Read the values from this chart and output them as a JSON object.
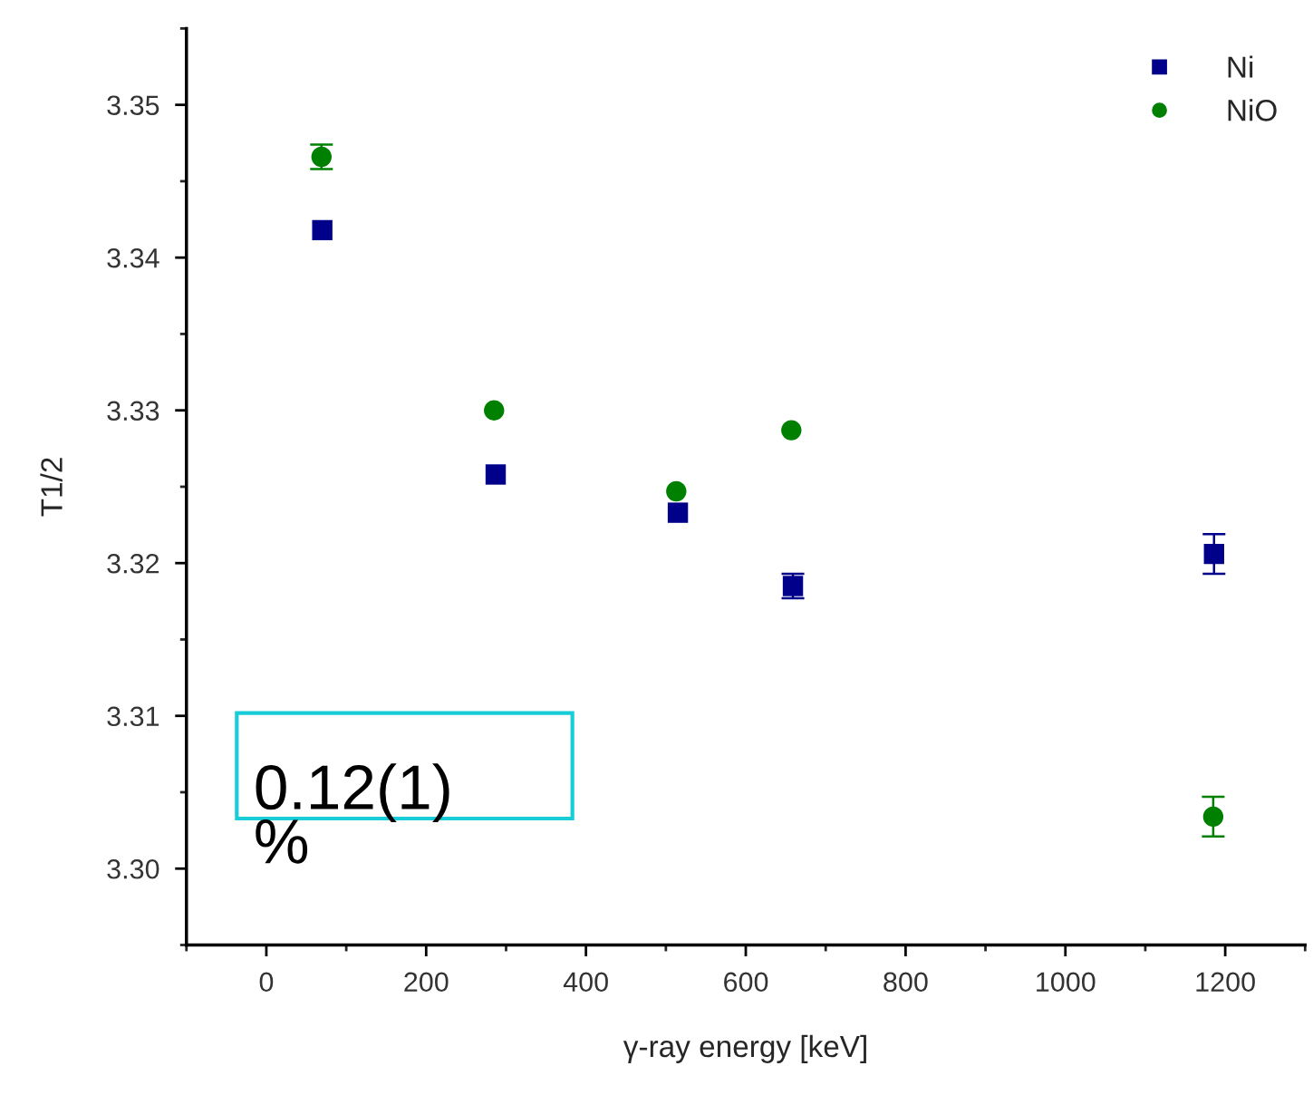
{
  "chart_data": {
    "type": "scatter",
    "xlabel": "γ-ray energy [keV]",
    "ylabel": "T1/2",
    "xlim": [
      -100,
      1300
    ],
    "xticks": [
      0,
      200,
      400,
      600,
      800,
      1000,
      1200
    ],
    "ylim": [
      3.295,
      3.355
    ],
    "yticks": [
      {
        "value": 3.3,
        "label": "3.30"
      },
      {
        "value": 3.31,
        "label": "3.31"
      },
      {
        "value": 3.32,
        "label": "3.32"
      },
      {
        "value": 3.33,
        "label": "3.33"
      },
      {
        "value": 3.34,
        "label": "3.34"
      },
      {
        "value": 3.35,
        "label": "3.35"
      }
    ],
    "grid": false,
    "legend": "top right",
    "series": [
      {
        "name": "Ni",
        "color": "#00008b",
        "marker": "square",
        "x": [
          70,
          287,
          515,
          659,
          1186
        ],
        "values": [
          3.3418,
          3.3258,
          3.3233,
          3.3185,
          3.3206
        ],
        "errors": [
          null,
          null,
          null,
          0.0008,
          0.0013
        ]
      },
      {
        "name": "NiO",
        "color": "#008000",
        "marker": "circle",
        "x": [
          69,
          285,
          513,
          657,
          1185
        ],
        "values": [
          3.3466,
          3.33,
          3.3247,
          3.3287,
          3.3034
        ],
        "errors": [
          0.0008,
          null,
          null,
          null,
          0.0013
        ]
      }
    ],
    "annotations": [
      "0.12(1)\n%"
    ]
  }
}
